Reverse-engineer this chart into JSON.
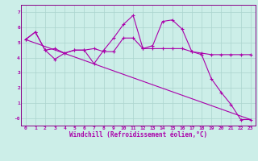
{
  "xlabel": "Windchill (Refroidissement éolien,°C)",
  "bg_color": "#cceee8",
  "grid_color": "#aad4ce",
  "line_color": "#aa00aa",
  "spine_color": "#880088",
  "xlim": [
    -0.5,
    23.5
  ],
  "ylim": [
    -0.5,
    7.5
  ],
  "xticks": [
    0,
    1,
    2,
    3,
    4,
    5,
    6,
    7,
    8,
    9,
    10,
    11,
    12,
    13,
    14,
    15,
    16,
    17,
    18,
    19,
    20,
    21,
    22,
    23
  ],
  "yticks": [
    0,
    1,
    2,
    3,
    4,
    5,
    6,
    7
  ],
  "ytick_labels": [
    "-0",
    "1",
    "2",
    "3",
    "4",
    "5",
    "6",
    "7"
  ],
  "line1_x": [
    0,
    1,
    2,
    3,
    4,
    5,
    6,
    7,
    8,
    9,
    10,
    11,
    12,
    13,
    14,
    15,
    16,
    17,
    18,
    19,
    20,
    21,
    22,
    23
  ],
  "line1_y": [
    5.2,
    5.7,
    4.5,
    3.9,
    4.3,
    4.5,
    4.5,
    3.6,
    4.5,
    5.3,
    6.2,
    6.8,
    4.6,
    4.8,
    6.4,
    6.5,
    5.9,
    4.4,
    4.2,
    2.6,
    1.7,
    0.9,
    -0.1,
    -0.1
  ],
  "line2_x": [
    0,
    23
  ],
  "line2_y": [
    5.2,
    -0.1
  ],
  "line3_x": [
    0,
    1,
    2,
    3,
    4,
    5,
    6,
    7,
    8,
    9,
    10,
    11,
    12,
    13,
    14,
    15,
    16,
    17,
    18,
    19,
    20,
    21,
    22,
    23
  ],
  "line3_y": [
    5.2,
    5.7,
    4.5,
    4.6,
    4.3,
    4.5,
    4.5,
    4.6,
    4.4,
    4.4,
    5.3,
    5.3,
    4.6,
    4.6,
    4.6,
    4.6,
    4.6,
    4.4,
    4.3,
    4.2,
    4.2,
    4.2,
    4.2,
    4.2
  ],
  "tick_fontsize": 4.5,
  "xlabel_fontsize": 5.5,
  "linewidth": 0.8,
  "marker_size": 2.5
}
